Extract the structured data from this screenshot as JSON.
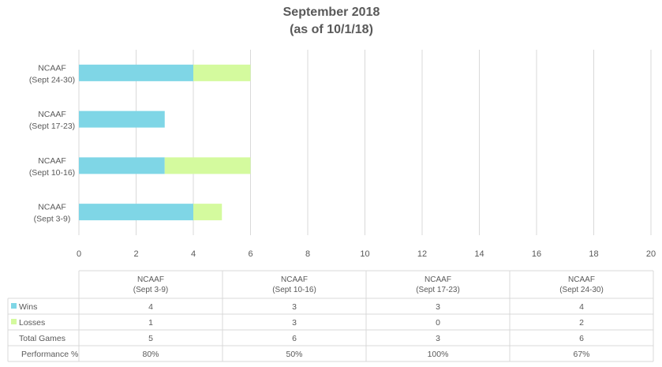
{
  "chart_data": {
    "type": "bar",
    "orientation": "horizontal",
    "stacked": true,
    "title": [
      "September 2018",
      "(as of 10/1/18)"
    ],
    "categories": [
      [
        "NCAAF",
        "(Sept 3-9)"
      ],
      [
        "NCAAF",
        "(Sept 10-16)"
      ],
      [
        "NCAAF",
        "(Sept 17-23)"
      ],
      [
        "NCAAF",
        "(Sept 24-30)"
      ]
    ],
    "series": [
      {
        "name": "Wins",
        "values": [
          4,
          3,
          3,
          4
        ],
        "color": "#7fd6e6"
      },
      {
        "name": "Losses",
        "values": [
          1,
          3,
          0,
          2
        ],
        "color": "#d4fa9e"
      }
    ],
    "xlim": [
      0,
      20
    ],
    "xticks": [
      0,
      2,
      4,
      6,
      8,
      10,
      12,
      14,
      16,
      18,
      20
    ],
    "grid": true,
    "legend": "data-table",
    "data_table": {
      "extra_rows": [
        {
          "name": "Total Games",
          "values": [
            "5",
            "6",
            "3",
            "6"
          ]
        },
        {
          "name": "Performance %",
          "values": [
            "80%",
            "50%",
            "100%",
            "67%"
          ]
        }
      ]
    }
  }
}
